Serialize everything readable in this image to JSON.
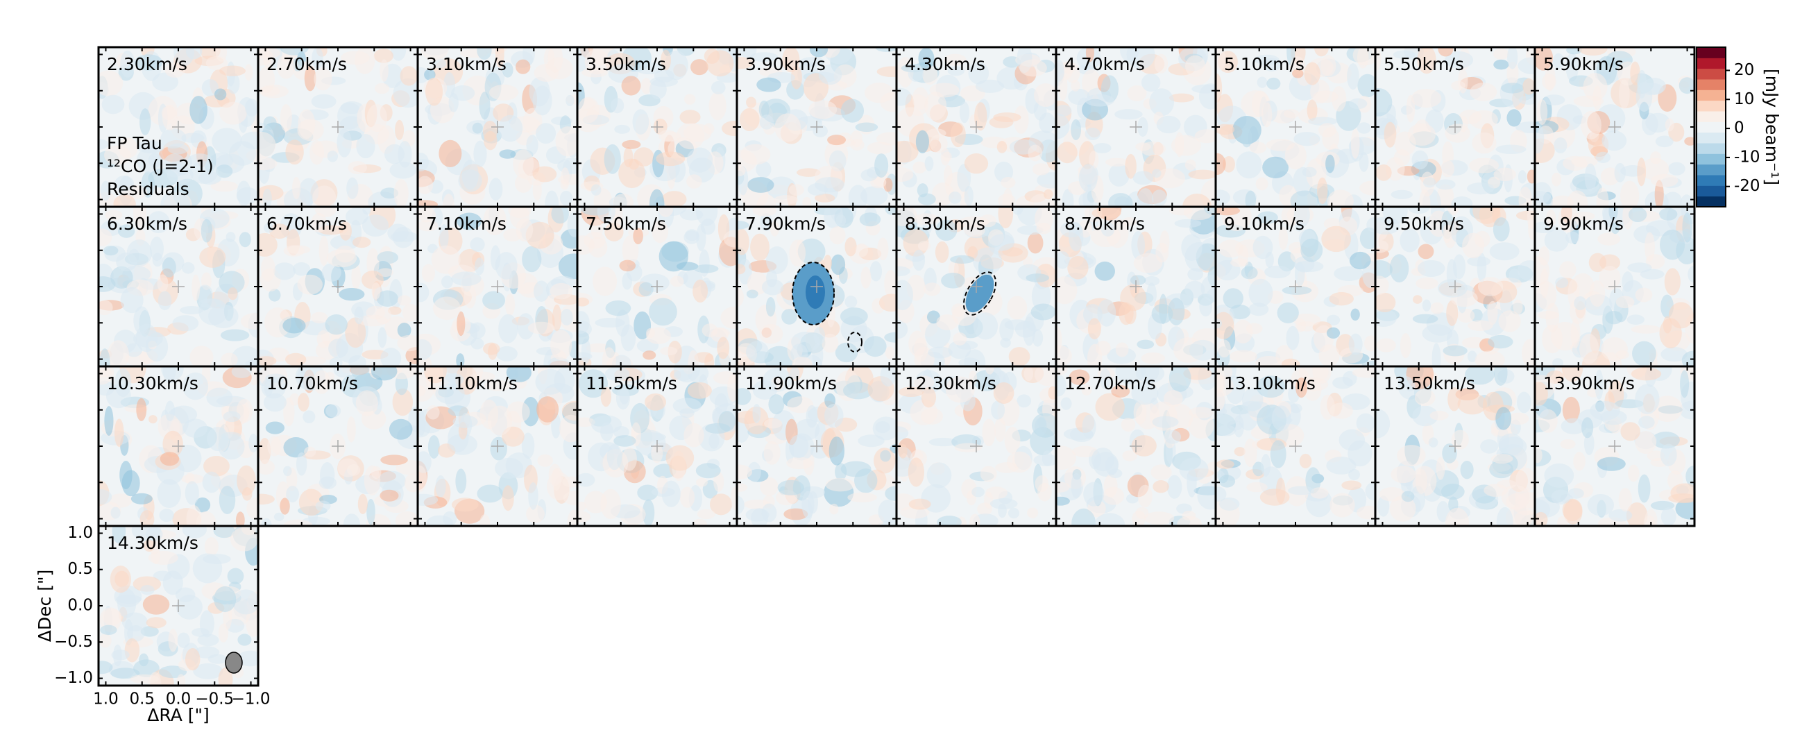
{
  "chart_data": {
    "type": "channel-map",
    "channels": [
      "2.30km/s",
      "2.70km/s",
      "3.10km/s",
      "3.50km/s",
      "3.90km/s",
      "4.30km/s",
      "4.70km/s",
      "5.10km/s",
      "5.50km/s",
      "5.90km/s",
      "6.30km/s",
      "6.70km/s",
      "7.10km/s",
      "7.50km/s",
      "7.90km/s",
      "8.30km/s",
      "8.70km/s",
      "9.10km/s",
      "9.50km/s",
      "9.90km/s",
      "10.30km/s",
      "10.70km/s",
      "11.10km/s",
      "11.50km/s",
      "11.90km/s",
      "12.30km/s",
      "12.70km/s",
      "13.10km/s",
      "13.50km/s",
      "13.90km/s",
      "14.30km/s"
    ],
    "annotation": [
      "FP Tau",
      "¹²CO (J=2-1)",
      "Residuals"
    ],
    "xlabel": "ΔRA [\"]",
    "ylabel": "ΔDec [\"]",
    "xlim": [
      1.1,
      -1.1
    ],
    "ylim": [
      -1.1,
      1.1
    ],
    "xticks": [
      {
        "value": 1,
        "label": "1.0"
      },
      {
        "value": 0.5,
        "label": "0.5"
      },
      {
        "value": 0,
        "label": "0.0"
      },
      {
        "value": -0.5,
        "label": "−0.5"
      },
      {
        "value": -1,
        "label": "−1.0"
      }
    ],
    "yticks": [
      {
        "value": 1,
        "label": "1.0"
      },
      {
        "value": 0.5,
        "label": "0.5"
      },
      {
        "value": 0,
        "label": "0.0"
      },
      {
        "value": -0.5,
        "label": "−0.5"
      },
      {
        "value": -1,
        "label": "−1.0"
      }
    ],
    "colorbar": {
      "label": "[mJy beam⁻¹]",
      "lim": [
        -27,
        28
      ],
      "ticks": [
        20,
        10,
        0,
        -10,
        -20
      ],
      "colors": [
        "#053061",
        "#1a5a9a",
        "#2f7bb6",
        "#5a9dc9",
        "#8fc2dd",
        "#bcdaea",
        "#dbeaf2",
        "#f0f4f6",
        "#f9efe9",
        "#fbd8c5",
        "#f5b293",
        "#e58267",
        "#cc4c44",
        "#b0182b",
        "#67001f"
      ]
    }
  }
}
